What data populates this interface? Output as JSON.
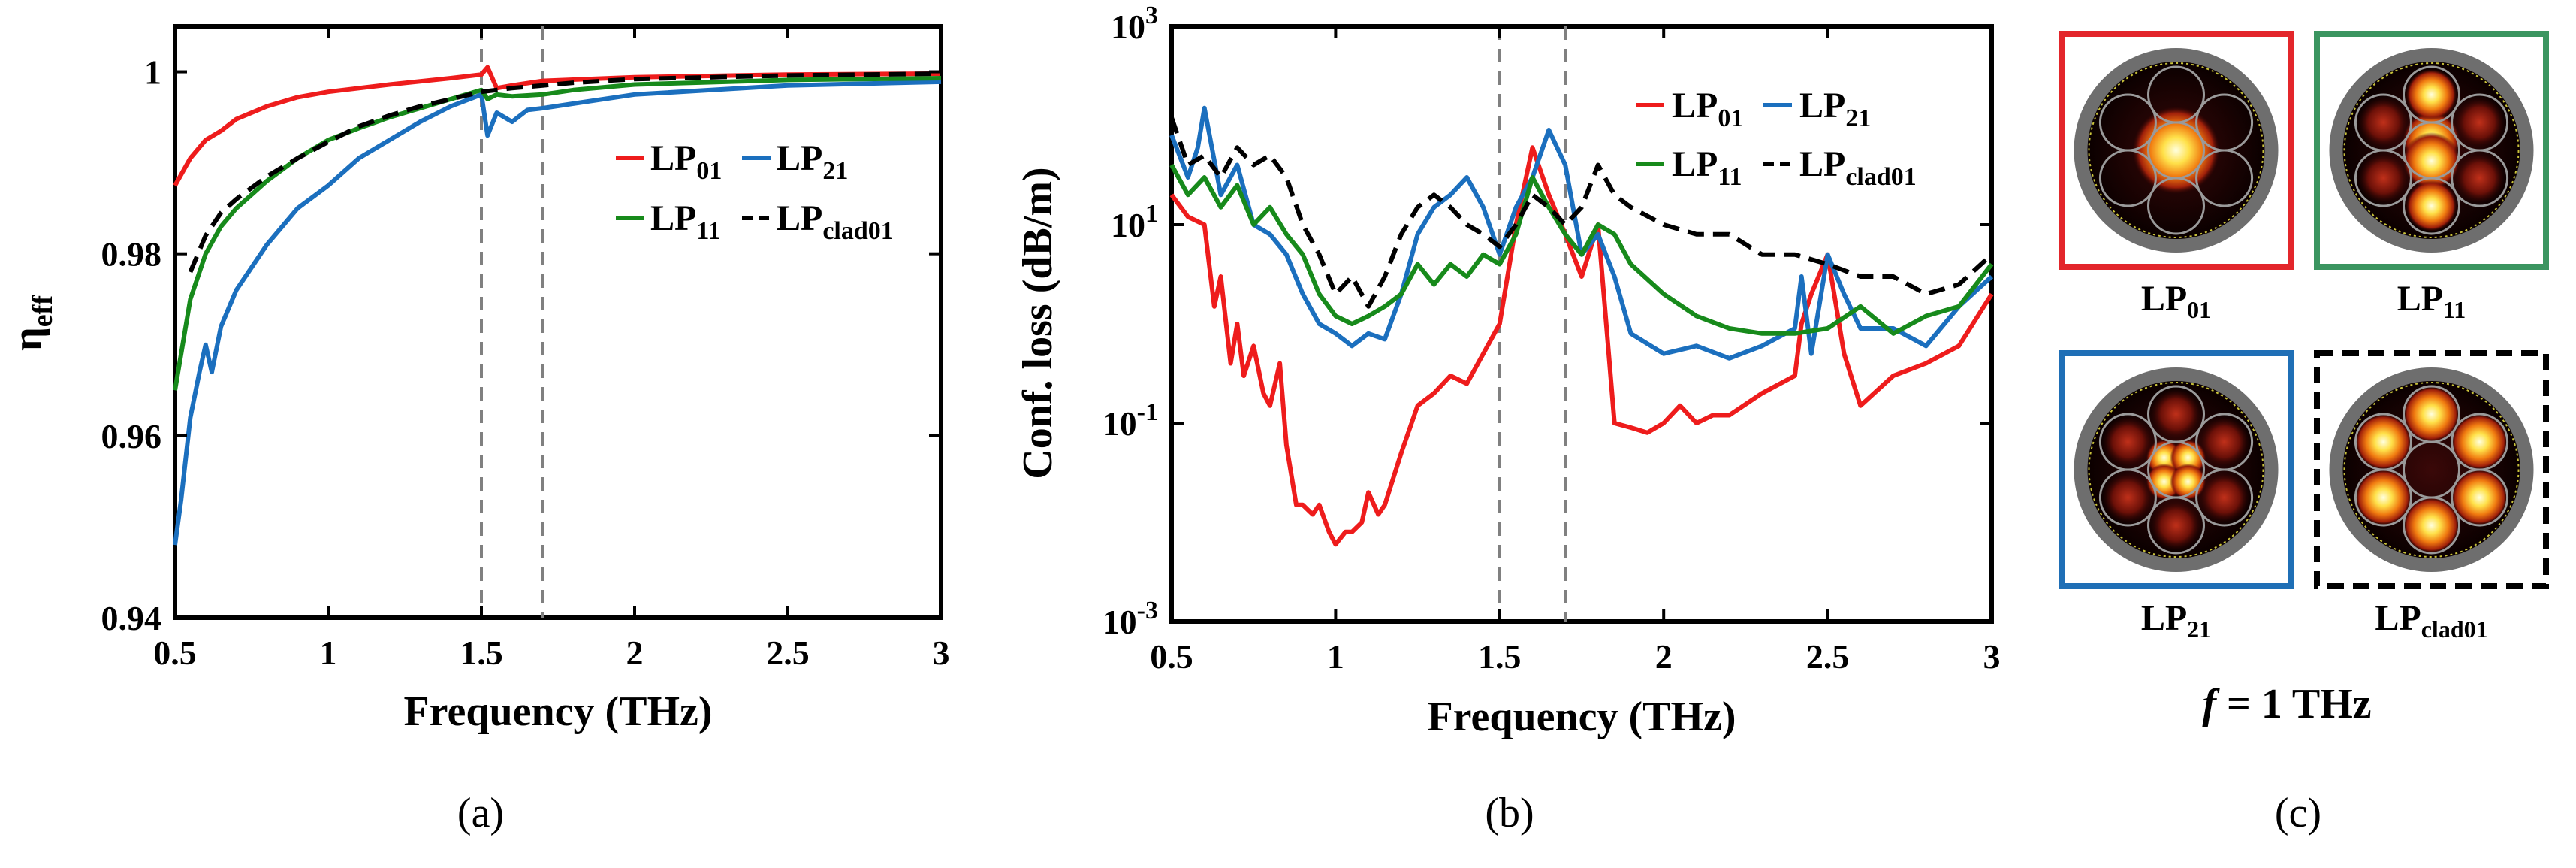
{
  "chart_data": [
    {
      "type": "line",
      "panel": "a",
      "panel_label": "(a)",
      "xlabel": "Frequency (THz)",
      "ylabel": "η",
      "ylabel_sub": "eff",
      "xlim": [
        0.5,
        3
      ],
      "ylim": [
        0.94,
        1.005
      ],
      "xticks": [
        0.5,
        1,
        1.5,
        2,
        2.5,
        3
      ],
      "xtick_labels": [
        "0.5",
        "1",
        "1.5",
        "2",
        "2.5",
        "3"
      ],
      "yticks": [
        0.94,
        0.96,
        0.98,
        1
      ],
      "ytick_labels": [
        "0.94",
        "0.96",
        "0.98",
        "1"
      ],
      "vlines": [
        1.5,
        1.7
      ],
      "legend_position": "center-right",
      "series": [
        {
          "name": "LP01",
          "label": "LP",
          "label_sub": "01",
          "color": "#ee1c1c",
          "dash": "solid",
          "x": [
            0.5,
            0.55,
            0.6,
            0.65,
            0.7,
            0.8,
            0.9,
            1.0,
            1.2,
            1.4,
            1.5,
            1.52,
            1.55,
            1.6,
            1.7,
            2.0,
            2.5,
            3.0
          ],
          "y": [
            0.9875,
            0.9905,
            0.9925,
            0.9935,
            0.9948,
            0.9962,
            0.9972,
            0.9978,
            0.9986,
            0.9993,
            0.9997,
            1.0005,
            0.9982,
            0.9985,
            0.999,
            0.9994,
            0.9997,
            0.9998
          ]
        },
        {
          "name": "LP21",
          "label": "LP",
          "label_sub": "21",
          "color": "#1b6fbe",
          "dash": "solid",
          "x": [
            0.5,
            0.52,
            0.55,
            0.58,
            0.6,
            0.62,
            0.65,
            0.7,
            0.8,
            0.9,
            1.0,
            1.1,
            1.2,
            1.3,
            1.4,
            1.5,
            1.52,
            1.55,
            1.6,
            1.65,
            1.7,
            1.8,
            2.0,
            2.5,
            3.0
          ],
          "y": [
            0.948,
            0.953,
            0.962,
            0.967,
            0.97,
            0.967,
            0.972,
            0.976,
            0.981,
            0.985,
            0.9875,
            0.9905,
            0.9925,
            0.9945,
            0.9962,
            0.9975,
            0.993,
            0.9955,
            0.9945,
            0.9958,
            0.996,
            0.9965,
            0.9975,
            0.9985,
            0.9989
          ]
        },
        {
          "name": "LP11",
          "label": "LP",
          "label_sub": "11",
          "color": "#178a1b",
          "dash": "solid",
          "x": [
            0.5,
            0.55,
            0.6,
            0.65,
            0.7,
            0.8,
            0.9,
            1.0,
            1.1,
            1.2,
            1.3,
            1.4,
            1.5,
            1.52,
            1.55,
            1.6,
            1.7,
            1.8,
            2.0,
            2.5,
            3.0
          ],
          "y": [
            0.965,
            0.975,
            0.98,
            0.983,
            0.985,
            0.988,
            0.9905,
            0.9925,
            0.9938,
            0.995,
            0.996,
            0.997,
            0.998,
            0.997,
            0.9975,
            0.9973,
            0.9975,
            0.998,
            0.9986,
            0.9991,
            0.9993
          ]
        },
        {
          "name": "LPclad01",
          "label": "LP",
          "label_sub": "clad01",
          "color": "#000000",
          "dash": "dashed",
          "x": [
            0.55,
            0.6,
            0.65,
            0.7,
            0.8,
            0.9,
            1.0,
            1.1,
            1.2,
            1.3,
            1.4,
            1.5,
            1.6,
            1.7,
            1.8,
            2.0,
            2.5,
            3.0
          ],
          "y": [
            0.978,
            0.982,
            0.9845,
            0.986,
            0.9885,
            0.9905,
            0.9923,
            0.994,
            0.9952,
            0.9962,
            0.997,
            0.9978,
            0.9982,
            0.9985,
            0.9988,
            0.9992,
            0.9996,
            0.9998
          ]
        }
      ]
    },
    {
      "type": "line",
      "panel": "b",
      "panel_label": "(b)",
      "xlabel": "Frequency (THz)",
      "ylabel": "Conf. loss (dB/m)",
      "yscale": "log",
      "xlim": [
        0.5,
        3
      ],
      "ylim": [
        0.001,
        1000
      ],
      "xticks": [
        0.5,
        1,
        1.5,
        2,
        2.5,
        3
      ],
      "xtick_labels": [
        "0.5",
        "1",
        "1.5",
        "2",
        "2.5",
        "3"
      ],
      "yticks": [
        0.001,
        0.1,
        10,
        1000
      ],
      "ytick_base": "10",
      "ytick_exponents": [
        "-3",
        "-1",
        "1",
        "3"
      ],
      "vlines": [
        1.5,
        1.7
      ],
      "legend_position": "top-right",
      "series": [
        {
          "name": "LP01",
          "label": "LP",
          "label_sub": "01",
          "color": "#ee1c1c",
          "dash": "solid",
          "x": [
            0.5,
            0.55,
            0.6,
            0.63,
            0.65,
            0.68,
            0.7,
            0.72,
            0.75,
            0.78,
            0.8,
            0.83,
            0.85,
            0.88,
            0.9,
            0.93,
            0.95,
            0.98,
            1.0,
            1.03,
            1.05,
            1.08,
            1.1,
            1.13,
            1.15,
            1.2,
            1.25,
            1.3,
            1.35,
            1.4,
            1.45,
            1.5,
            1.55,
            1.6,
            1.65,
            1.7,
            1.75,
            1.8,
            1.85,
            1.9,
            1.95,
            2.0,
            2.05,
            2.1,
            2.15,
            2.2,
            2.3,
            2.4,
            2.42,
            2.45,
            2.5,
            2.55,
            2.6,
            2.7,
            2.8,
            2.9,
            3.0
          ],
          "y": [
            20,
            12,
            10,
            1.5,
            3,
            0.4,
            1.0,
            0.3,
            0.6,
            0.2,
            0.15,
            0.4,
            0.06,
            0.015,
            0.015,
            0.012,
            0.015,
            0.008,
            0.006,
            0.008,
            0.008,
            0.01,
            0.02,
            0.012,
            0.015,
            0.05,
            0.15,
            0.2,
            0.3,
            0.25,
            0.5,
            1.0,
            10,
            60,
            20,
            8,
            3,
            10,
            0.1,
            0.09,
            0.08,
            0.1,
            0.15,
            0.1,
            0.12,
            0.12,
            0.2,
            0.3,
            1.0,
            2.0,
            5.0,
            0.5,
            0.15,
            0.3,
            0.4,
            0.6,
            2.0
          ]
        },
        {
          "name": "LP21",
          "label": "LP",
          "label_sub": "21",
          "color": "#1b6fbe",
          "dash": "solid",
          "x": [
            0.5,
            0.55,
            0.58,
            0.6,
            0.65,
            0.7,
            0.75,
            0.8,
            0.85,
            0.9,
            0.95,
            1.0,
            1.05,
            1.1,
            1.15,
            1.2,
            1.25,
            1.3,
            1.35,
            1.4,
            1.45,
            1.5,
            1.55,
            1.6,
            1.65,
            1.7,
            1.75,
            1.8,
            1.85,
            1.9,
            2.0,
            2.1,
            2.2,
            2.3,
            2.4,
            2.42,
            2.45,
            2.5,
            2.55,
            2.6,
            2.7,
            2.8,
            2.9,
            3.0
          ],
          "y": [
            80,
            30,
            60,
            150,
            20,
            40,
            10,
            8,
            5,
            2,
            1,
            0.8,
            0.6,
            0.8,
            0.7,
            2,
            8,
            15,
            20,
            30,
            15,
            5,
            15,
            30,
            90,
            40,
            5,
            8,
            3,
            0.8,
            0.5,
            0.6,
            0.45,
            0.6,
            0.9,
            3,
            0.5,
            5,
            2,
            0.9,
            0.9,
            0.6,
            1.5,
            3
          ]
        },
        {
          "name": "LP11",
          "label": "LP",
          "label_sub": "11",
          "color": "#178a1b",
          "dash": "solid",
          "x": [
            0.5,
            0.55,
            0.6,
            0.65,
            0.7,
            0.75,
            0.8,
            0.85,
            0.9,
            0.95,
            1.0,
            1.05,
            1.1,
            1.15,
            1.2,
            1.25,
            1.3,
            1.35,
            1.4,
            1.45,
            1.5,
            1.55,
            1.6,
            1.65,
            1.7,
            1.75,
            1.8,
            1.85,
            1.9,
            2.0,
            2.1,
            2.2,
            2.3,
            2.4,
            2.5,
            2.6,
            2.7,
            2.8,
            2.9,
            3.0
          ],
          "y": [
            40,
            20,
            30,
            15,
            25,
            10,
            15,
            8,
            5,
            2,
            1.2,
            1.0,
            1.2,
            1.5,
            2,
            4,
            2.5,
            4,
            3,
            5,
            4,
            8,
            30,
            15,
            8,
            5,
            10,
            8,
            4,
            2,
            1.2,
            0.9,
            0.8,
            0.8,
            0.9,
            1.5,
            0.8,
            1.2,
            1.5,
            4
          ]
        },
        {
          "name": "LPclad01",
          "label": "LP",
          "label_sub": "clad01",
          "color": "#000000",
          "dash": "dashed",
          "x": [
            0.5,
            0.55,
            0.6,
            0.65,
            0.7,
            0.75,
            0.8,
            0.85,
            0.9,
            0.95,
            1.0,
            1.05,
            1.1,
            1.15,
            1.2,
            1.25,
            1.3,
            1.35,
            1.4,
            1.45,
            1.5,
            1.55,
            1.6,
            1.65,
            1.7,
            1.75,
            1.8,
            1.85,
            1.9,
            2.0,
            2.1,
            2.2,
            2.3,
            2.4,
            2.5,
            2.6,
            2.7,
            2.8,
            2.9,
            3.0
          ],
          "y": [
            120,
            40,
            50,
            30,
            60,
            40,
            50,
            30,
            10,
            5,
            2,
            3,
            1.5,
            3,
            8,
            15,
            20,
            15,
            10,
            8,
            6,
            10,
            20,
            15,
            10,
            15,
            40,
            20,
            15,
            10,
            8,
            8,
            5,
            5,
            4,
            3,
            3,
            2,
            2.5,
            5
          ]
        }
      ]
    }
  ],
  "panel_c": {
    "label": "(c)",
    "caption_italic": "f",
    "caption_rest": " = 1 THz",
    "modes": [
      {
        "label": "LP",
        "sub": "01",
        "frame_color": "#e3262b",
        "frame_style": "solid",
        "pattern": "center"
      },
      {
        "label": "LP",
        "sub": "11",
        "frame_color": "#3b9560",
        "frame_style": "solid",
        "pattern": "lp11"
      },
      {
        "label": "LP",
        "sub": "21",
        "frame_color": "#1f6fb6",
        "frame_style": "solid",
        "pattern": "lp21"
      },
      {
        "label": "LP",
        "sub": "clad01",
        "frame_color": "#000000",
        "frame_style": "dashed",
        "pattern": "clad"
      }
    ]
  }
}
